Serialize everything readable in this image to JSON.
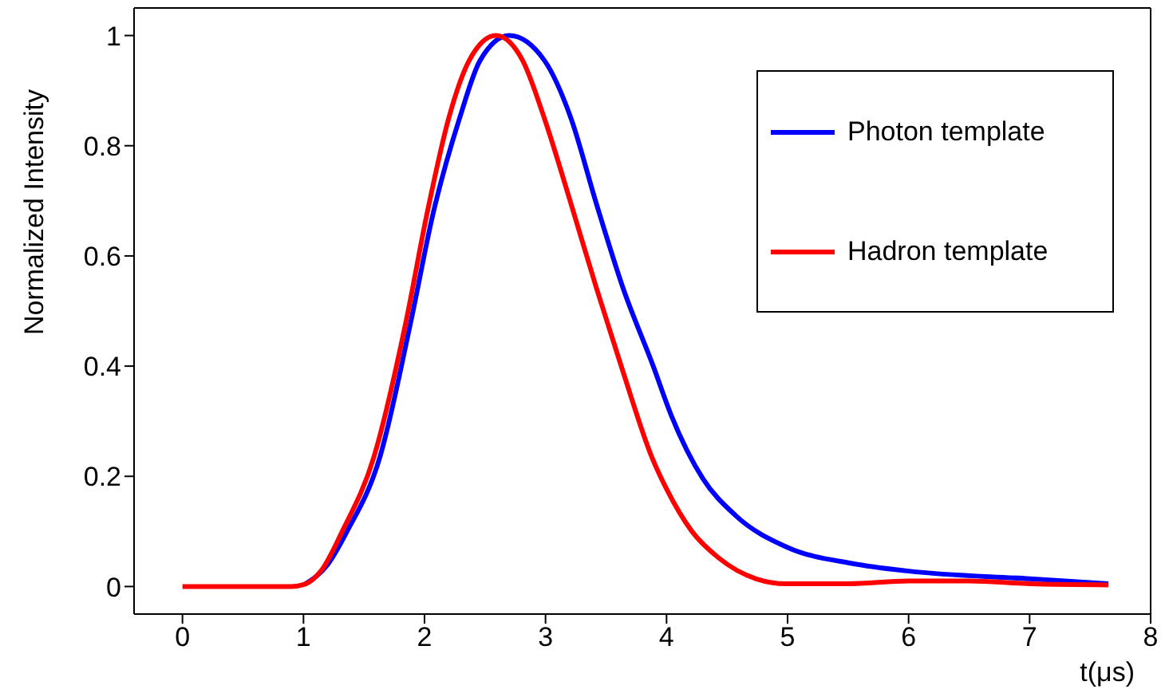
{
  "chart_data": {
    "type": "line",
    "xlabel": "t(μs)",
    "ylabel": "Normalized Intensity",
    "xlim": [
      -0.4,
      8
    ],
    "ylim": [
      -0.05,
      1.05
    ],
    "xticks": [
      0,
      1,
      2,
      3,
      4,
      5,
      6,
      7,
      8
    ],
    "yticks": [
      0,
      0.2,
      0.4,
      0.6,
      0.8,
      1
    ],
    "legend": "top right",
    "marker": "none",
    "line_style": "solid",
    "series": [
      {
        "name": "Photon template",
        "color": "#0000ff",
        "x": [
          1.01,
          1.2,
          1.36,
          1.63,
          1.89,
          2.07,
          2.29,
          2.46,
          2.7,
          2.99,
          3.21,
          3.42,
          3.64,
          3.89,
          4.04,
          4.3,
          4.57,
          5.0,
          5.53,
          6.0,
          7.0,
          7.65
        ],
        "values": [
          0.004,
          0.04,
          0.1,
          0.234,
          0.484,
          0.676,
          0.85,
          0.955,
          1.0,
          0.955,
          0.85,
          0.695,
          0.542,
          0.4,
          0.31,
          0.196,
          0.129,
          0.071,
          0.042,
          0.028,
          0.014,
          0.005
        ]
      },
      {
        "name": "Hadron template",
        "color": "#ff0000",
        "x": [
          0,
          0.9,
          1.01,
          1.15,
          1.32,
          1.58,
          1.85,
          2.02,
          2.2,
          2.37,
          2.59,
          2.81,
          2.99,
          3.21,
          3.42,
          3.64,
          3.88,
          4.0,
          4.21,
          4.43,
          4.74,
          4.99,
          5.5,
          6.0,
          6.5,
          7.0,
          7.65
        ],
        "values": [
          0,
          0,
          0.004,
          0.03,
          0.1,
          0.234,
          0.484,
          0.676,
          0.85,
          0.955,
          1.0,
          0.955,
          0.85,
          0.695,
          0.542,
          0.39,
          0.234,
          0.177,
          0.1,
          0.052,
          0.014,
          0.005,
          0.005,
          0.01,
          0.01,
          0.005,
          0.003
        ]
      }
    ]
  }
}
